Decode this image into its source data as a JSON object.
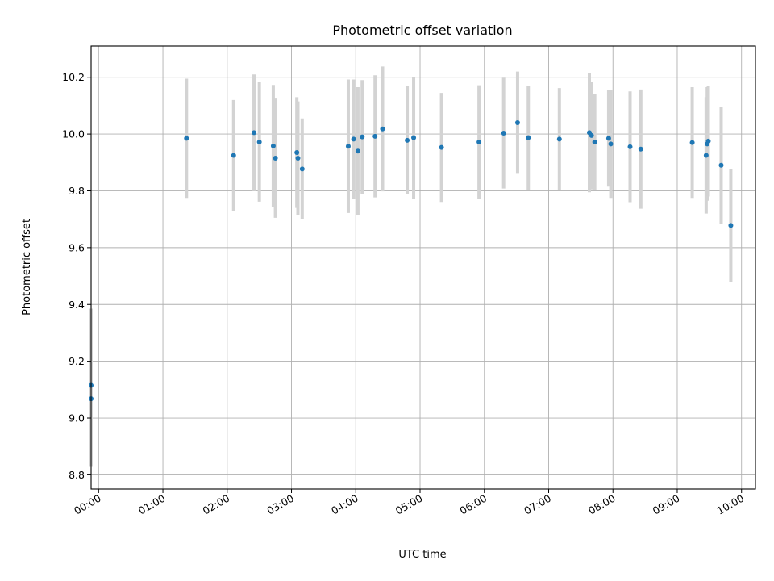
{
  "chart_data": {
    "type": "scatter",
    "title": "Photometric offset variation",
    "xlabel": "UTC time",
    "ylabel": "Photometric offset",
    "xlim": [
      "23:53",
      "10:13"
    ],
    "ylim": [
      8.75,
      10.31
    ],
    "x_ticks": [
      "00:00",
      "01:00",
      "02:00",
      "03:00",
      "04:00",
      "05:00",
      "06:00",
      "07:00",
      "08:00",
      "09:00",
      "10:00"
    ],
    "y_ticks": [
      8.8,
      9.0,
      9.2,
      9.4,
      9.6,
      9.8,
      10.0,
      10.2
    ],
    "grid": true,
    "marker_color": "#1f77b4",
    "errorbar_color": "#d3d3d3",
    "points": [
      {
        "t": "23:53",
        "y": 9.115,
        "err": 0.27
      },
      {
        "t": "23:53",
        "y": 9.068,
        "err": 0.24
      },
      {
        "t": "01:22",
        "y": 9.985,
        "err": 0.21
      },
      {
        "t": "02:06",
        "y": 9.925,
        "err": 0.195
      },
      {
        "t": "02:25",
        "y": 10.005,
        "err": 0.205
      },
      {
        "t": "02:30",
        "y": 9.972,
        "err": 0.21
      },
      {
        "t": "02:43",
        "y": 9.958,
        "err": 0.215
      },
      {
        "t": "02:45",
        "y": 9.915,
        "err": 0.21
      },
      {
        "t": "03:05",
        "y": 9.935,
        "err": 0.195
      },
      {
        "t": "03:06",
        "y": 9.915,
        "err": 0.2
      },
      {
        "t": "03:10",
        "y": 9.877,
        "err": 0.178
      },
      {
        "t": "03:53",
        "y": 9.957,
        "err": 0.235
      },
      {
        "t": "03:58",
        "y": 9.982,
        "err": 0.21
      },
      {
        "t": "04:02",
        "y": 9.94,
        "err": 0.225
      },
      {
        "t": "04:06",
        "y": 9.99,
        "err": 0.2
      },
      {
        "t": "04:18",
        "y": 9.992,
        "err": 0.215
      },
      {
        "t": "04:25",
        "y": 10.018,
        "err": 0.22
      },
      {
        "t": "04:48",
        "y": 9.978,
        "err": 0.19
      },
      {
        "t": "04:54",
        "y": 9.987,
        "err": 0.215
      },
      {
        "t": "05:20",
        "y": 9.953,
        "err": 0.192
      },
      {
        "t": "05:55",
        "y": 9.972,
        "err": 0.2
      },
      {
        "t": "06:18",
        "y": 10.003,
        "err": 0.195
      },
      {
        "t": "06:31",
        "y": 10.04,
        "err": 0.18
      },
      {
        "t": "06:41",
        "y": 9.987,
        "err": 0.183
      },
      {
        "t": "07:10",
        "y": 9.982,
        "err": 0.18
      },
      {
        "t": "07:38",
        "y": 10.005,
        "err": 0.21
      },
      {
        "t": "07:40",
        "y": 9.995,
        "err": 0.19
      },
      {
        "t": "07:43",
        "y": 9.972,
        "err": 0.168
      },
      {
        "t": "07:56",
        "y": 9.985,
        "err": 0.17
      },
      {
        "t": "07:58",
        "y": 9.965,
        "err": 0.19
      },
      {
        "t": "08:16",
        "y": 9.955,
        "err": 0.195
      },
      {
        "t": "08:26",
        "y": 9.947,
        "err": 0.21
      },
      {
        "t": "09:14",
        "y": 9.97,
        "err": 0.195
      },
      {
        "t": "09:27",
        "y": 9.925,
        "err": 0.205
      },
      {
        "t": "09:28",
        "y": 9.965,
        "err": 0.2
      },
      {
        "t": "09:29",
        "y": 9.975,
        "err": 0.195
      },
      {
        "t": "09:41",
        "y": 9.89,
        "err": 0.205
      },
      {
        "t": "09:50",
        "y": 9.678,
        "err": 0.2
      }
    ]
  }
}
